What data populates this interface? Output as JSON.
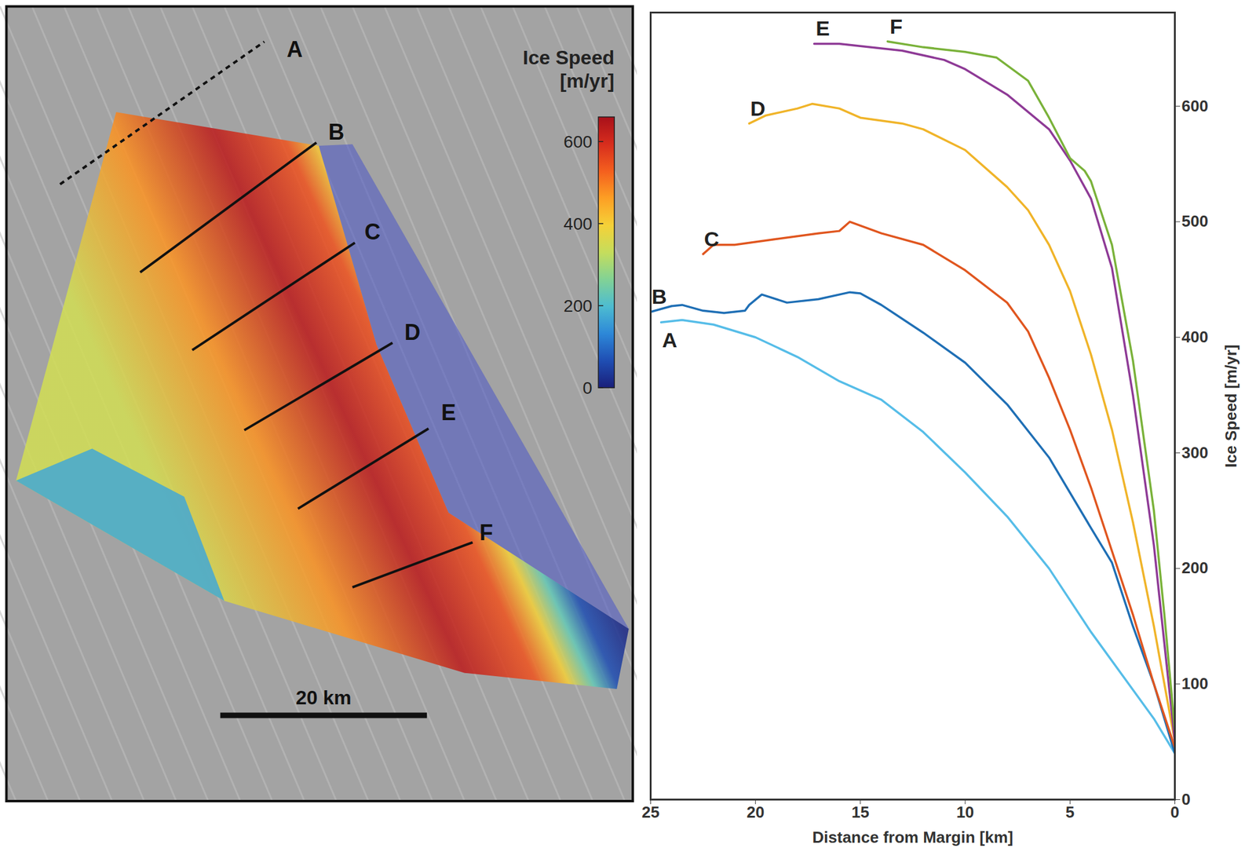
{
  "chart_data": [
    {
      "type": "map",
      "colorbar": {
        "label": "Ice Speed [m/yr]",
        "lim": [
          0,
          660
        ],
        "ticks": [
          0,
          200,
          400,
          600
        ]
      },
      "profiles": [
        {
          "name": "A",
          "line_style": "dashed"
        },
        {
          "name": "B",
          "line_style": "solid"
        },
        {
          "name": "C",
          "line_style": "solid"
        },
        {
          "name": "D",
          "line_style": "solid"
        },
        {
          "name": "E",
          "line_style": "solid"
        },
        {
          "name": "F",
          "line_style": "solid"
        }
      ],
      "scale_bar": "20 km"
    },
    {
      "type": "line",
      "x_label": "Distance from Margin [km]",
      "y_label": "Ice Speed [m/yr]",
      "xlim": [
        25,
        0
      ],
      "xticks": [
        0,
        5,
        10,
        15,
        20,
        25
      ],
      "ylim": [
        0,
        681
      ],
      "yticks": [
        0,
        100,
        200,
        300,
        400,
        500,
        600
      ],
      "series": [
        {
          "name": "A",
          "color": "#56bde8",
          "x": [
            24.5,
            23.5,
            22,
            20,
            18,
            16,
            14,
            12,
            10,
            8,
            6,
            4,
            2,
            1,
            0
          ],
          "values": [
            413,
            415,
            411,
            400,
            383,
            362,
            346,
            318,
            283,
            245,
            200,
            145,
            95,
            70,
            40
          ]
        },
        {
          "name": "B",
          "color": "#1f6fb5",
          "x": [
            25,
            24,
            23.5,
            22.5,
            21.5,
            20.5,
            20.3,
            19.7,
            18.5,
            17,
            15.5,
            15,
            14,
            12,
            10,
            8,
            6,
            4,
            3,
            2,
            1,
            0
          ],
          "values": [
            422,
            427,
            428,
            423,
            421,
            423,
            428,
            437,
            430,
            433,
            439,
            438,
            428,
            404,
            378,
            342,
            296,
            235,
            205,
            150,
            100,
            40
          ]
        },
        {
          "name": "C",
          "color": "#e0561f",
          "x": [
            22.5,
            22,
            21,
            19,
            17,
            16,
            15.5,
            14,
            12,
            10,
            8,
            7,
            6,
            5,
            4,
            3,
            2,
            1,
            0
          ],
          "values": [
            472,
            480,
            480,
            485,
            490,
            492,
            500,
            490,
            480,
            458,
            430,
            405,
            365,
            320,
            270,
            215,
            160,
            100,
            45
          ]
        },
        {
          "name": "D",
          "color": "#f0b429",
          "x": [
            20.3,
            19.5,
            18,
            17.3,
            16,
            15,
            13,
            12,
            10,
            8,
            7,
            6,
            5,
            4,
            3,
            2,
            1,
            0
          ],
          "values": [
            585,
            592,
            598,
            602,
            598,
            590,
            585,
            580,
            562,
            530,
            510,
            480,
            440,
            385,
            320,
            240,
            150,
            50
          ]
        },
        {
          "name": "E",
          "color": "#8e3a96",
          "x": [
            17.2,
            16,
            15,
            13,
            11,
            10,
            8,
            6,
            5,
            4,
            3,
            2,
            1,
            0
          ],
          "values": [
            654,
            654,
            652,
            648,
            640,
            632,
            610,
            580,
            553,
            520,
            460,
            350,
            220,
            50
          ]
        },
        {
          "name": "F",
          "color": "#7ab23a",
          "x": [
            13.7,
            12,
            10,
            8.5,
            7,
            6,
            5,
            4.3,
            4,
            3,
            2,
            1,
            0.5,
            0
          ],
          "values": [
            656,
            651,
            647,
            642,
            622,
            590,
            555,
            544,
            535,
            480,
            380,
            250,
            160,
            60
          ]
        }
      ]
    }
  ]
}
